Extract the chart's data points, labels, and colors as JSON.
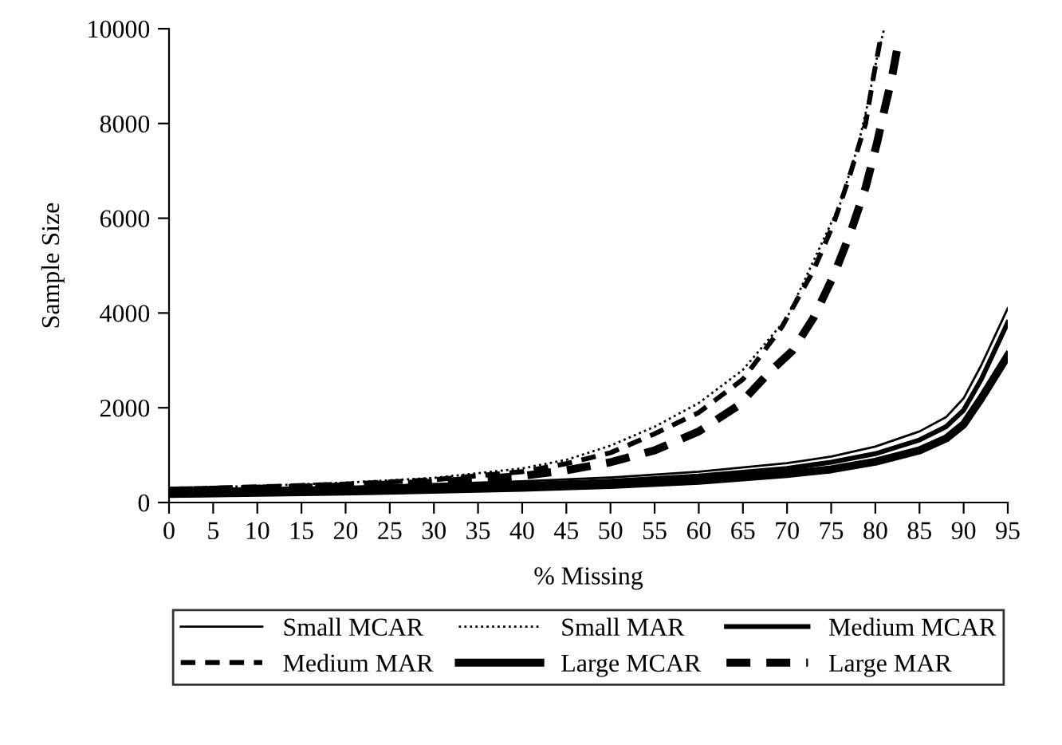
{
  "chart_data": {
    "type": "line",
    "xlabel": "% Missing",
    "ylabel": "Sample Size",
    "xlim": [
      0,
      95
    ],
    "xticks": [
      0,
      5,
      10,
      15,
      20,
      25,
      30,
      35,
      40,
      45,
      50,
      55,
      60,
      65,
      70,
      75,
      80,
      85,
      90,
      95
    ],
    "ylim": [
      0,
      10000
    ],
    "yticks": [
      0,
      2000,
      4000,
      6000,
      8000,
      10000
    ],
    "grid": false,
    "legend": "bottom",
    "marker": "none",
    "series": [
      {
        "name": "Small MCAR",
        "color": "#000000",
        "line_style": "solid",
        "x": [
          0,
          20,
          40,
          50,
          60,
          70,
          75,
          80,
          85,
          88,
          90,
          92,
          95
        ],
        "values": [
          280,
          330,
          450,
          530,
          650,
          830,
          970,
          1180,
          1500,
          1800,
          2200,
          2900,
          4100
        ]
      },
      {
        "name": "Small MAR",
        "color": "#000000",
        "line_style": "dotted",
        "x": [
          0,
          10,
          20,
          30,
          40,
          45,
          50,
          55,
          60,
          65,
          70,
          73.5,
          76,
          78,
          79,
          80.2,
          81
        ],
        "values": [
          300,
          350,
          420,
          520,
          720,
          900,
          1200,
          1600,
          2100,
          2800,
          3900,
          5300,
          6300,
          7500,
          8300,
          9400,
          10000
        ]
      },
      {
        "name": "Medium MCAR",
        "color": "#000000",
        "line_style": "solid",
        "x": [
          0,
          20,
          40,
          50,
          60,
          70,
          75,
          80,
          85,
          88,
          90,
          92,
          95
        ],
        "values": [
          230,
          280,
          380,
          450,
          560,
          720,
          850,
          1030,
          1320,
          1600,
          1950,
          2600,
          3800
        ]
      },
      {
        "name": "Medium MAR",
        "color": "#000000",
        "line_style": "dashed",
        "x": [
          0,
          10,
          20,
          30,
          40,
          45,
          50,
          55,
          60,
          65,
          69.4,
          73,
          75.3,
          77.1,
          78.9,
          79.8,
          80.7
        ],
        "values": [
          280,
          330,
          390,
          480,
          650,
          820,
          1050,
          1450,
          1900,
          2600,
          3700,
          4900,
          5900,
          6900,
          8000,
          9000,
          9900
        ]
      },
      {
        "name": "Large MCAR",
        "color": "#000000",
        "line_style": "solid",
        "x": [
          0,
          20,
          40,
          50,
          60,
          70,
          75,
          80,
          85,
          88,
          90,
          92,
          95
        ],
        "values": [
          180,
          230,
          310,
          370,
          460,
          600,
          700,
          860,
          1100,
          1350,
          1650,
          2200,
          3100
        ]
      },
      {
        "name": "Large MAR",
        "color": "#000000",
        "line_style": "dashed",
        "x": [
          0,
          10,
          20,
          30,
          40,
          45,
          50,
          55,
          60,
          64.5,
          68,
          70.6,
          73,
          75.3,
          77.1,
          78.9,
          80.2,
          81.1,
          81.8,
          82.5
        ],
        "values": [
          250,
          290,
          340,
          420,
          560,
          680,
          850,
          1100,
          1500,
          2050,
          2750,
          3200,
          3900,
          4800,
          5650,
          6650,
          7600,
          8350,
          8900,
          9600
        ]
      }
    ]
  }
}
